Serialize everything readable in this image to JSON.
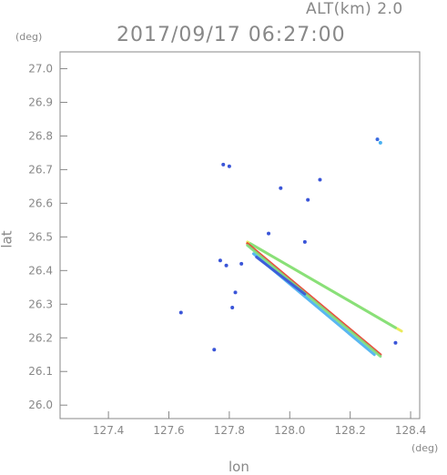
{
  "header": {
    "alt_label": "ALT(km)  2.0",
    "timestamp": "2017/09/17 06:27:00",
    "y_unit": "(deg)",
    "x_unit": "(deg)"
  },
  "chart_data": {
    "type": "scatter",
    "title": "2017/09/17 06:27:00",
    "subtitle": "ALT(km)  2.0",
    "xlabel": "lon",
    "ylabel": "lat",
    "x_unit": "(deg)",
    "y_unit": "(deg)",
    "xlim": [
      127.24,
      128.43
    ],
    "ylim": [
      25.96,
      27.05
    ],
    "x_ticks": [
      127.4,
      127.6,
      127.8,
      128.0,
      128.2,
      128.4
    ],
    "x_tick_labels": [
      "127.4",
      "127.6",
      "127.8",
      "128.0",
      "128.2",
      "128.4"
    ],
    "y_ticks": [
      26.0,
      26.1,
      26.2,
      26.3,
      26.4,
      26.5,
      26.6,
      26.7,
      26.8,
      26.9,
      27.0
    ],
    "y_tick_labels": [
      "26.0",
      "26.1",
      "26.2",
      "26.3",
      "26.4",
      "26.5",
      "26.6",
      "26.7",
      "26.8",
      "26.9",
      "27.0"
    ],
    "grid": false,
    "colors": {
      "frame": "#888888",
      "blue": "#3a55d8",
      "cyan": "#48b0f0",
      "green": "#7ee07e",
      "yellow": "#e8e84a",
      "red": "#e83a2a",
      "orange": "#f0a030"
    },
    "echo_points": [
      {
        "lon": 128.29,
        "lat": 26.79,
        "color": "#3a6ae0"
      },
      {
        "lon": 128.3,
        "lat": 26.78,
        "color": "#48b0f0"
      },
      {
        "lon": 127.78,
        "lat": 26.715,
        "color": "#3a55d8"
      },
      {
        "lon": 127.8,
        "lat": 26.71,
        "color": "#3a55d8"
      },
      {
        "lon": 128.1,
        "lat": 26.67,
        "color": "#3a55d8"
      },
      {
        "lon": 127.97,
        "lat": 26.645,
        "color": "#3a55d8"
      },
      {
        "lon": 128.06,
        "lat": 26.61,
        "color": "#3a55d8"
      },
      {
        "lon": 127.93,
        "lat": 26.51,
        "color": "#3a55d8"
      },
      {
        "lon": 128.05,
        "lat": 26.485,
        "color": "#3a55d8"
      },
      {
        "lon": 127.77,
        "lat": 26.43,
        "color": "#3a55d8"
      },
      {
        "lon": 127.79,
        "lat": 26.415,
        "color": "#3a55d8"
      },
      {
        "lon": 127.84,
        "lat": 26.42,
        "color": "#3a55d8"
      },
      {
        "lon": 127.82,
        "lat": 26.335,
        "color": "#3a55d8"
      },
      {
        "lon": 127.81,
        "lat": 26.29,
        "color": "#3a55d8"
      },
      {
        "lon": 127.64,
        "lat": 26.275,
        "color": "#3a55d8"
      },
      {
        "lon": 127.75,
        "lat": 26.165,
        "color": "#3a55d8"
      },
      {
        "lon": 128.35,
        "lat": 26.185,
        "color": "#3a55d8"
      }
    ],
    "streaks": [
      {
        "lon1": 127.86,
        "lat1": 26.485,
        "lon2": 128.37,
        "lat2": 26.22,
        "color": "#e8e84a"
      },
      {
        "lon1": 127.87,
        "lat1": 26.48,
        "lon2": 128.35,
        "lat2": 26.23,
        "color": "#7ee07e"
      },
      {
        "lon1": 127.86,
        "lat1": 26.48,
        "lon2": 128.3,
        "lat2": 26.15,
        "color": "#e83a2a"
      },
      {
        "lon1": 127.86,
        "lat1": 26.475,
        "lon2": 128.3,
        "lat2": 26.145,
        "color": "#7ee07e"
      },
      {
        "lon1": 127.88,
        "lat1": 26.45,
        "lon2": 128.28,
        "lat2": 26.15,
        "color": "#48b0f0"
      },
      {
        "lon1": 127.89,
        "lat1": 26.44,
        "lon2": 128.05,
        "lat2": 26.33,
        "color": "#3a55d8"
      }
    ]
  }
}
